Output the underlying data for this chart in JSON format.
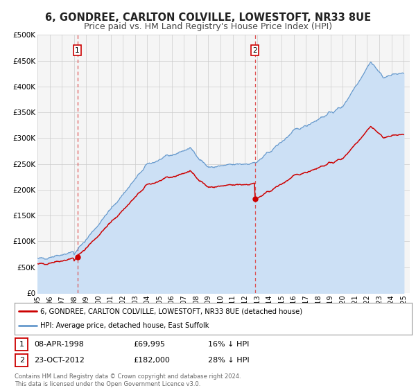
{
  "title": "6, GONDREE, CARLTON COLVILLE, LOWESTOFT, NR33 8UE",
  "subtitle": "Price paid vs. HM Land Registry's House Price Index (HPI)",
  "ylim": [
    0,
    500000
  ],
  "yticks": [
    0,
    50000,
    100000,
    150000,
    200000,
    250000,
    300000,
    350000,
    400000,
    450000,
    500000
  ],
  "xlim_start": 1995.0,
  "xlim_end": 2025.5,
  "xtick_years": [
    1995,
    1996,
    1997,
    1998,
    1999,
    2000,
    2001,
    2002,
    2003,
    2004,
    2005,
    2006,
    2007,
    2008,
    2009,
    2010,
    2011,
    2012,
    2013,
    2014,
    2015,
    2016,
    2017,
    2018,
    2019,
    2020,
    2021,
    2022,
    2023,
    2024,
    2025
  ],
  "sale1_x": 1998.27,
  "sale1_y": 69995,
  "sale1_label": "1",
  "sale2_x": 2012.81,
  "sale2_y": 182000,
  "sale2_label": "2",
  "red_line_color": "#cc0000",
  "blue_line_color": "#6699cc",
  "blue_fill_color": "#cce0f5",
  "red_dot_color": "#cc0000",
  "vline_color": "#dd4444",
  "bg_color": "#ffffff",
  "plot_bg_color": "#f5f5f5",
  "grid_color": "#cccccc",
  "legend_label_red": "6, GONDREE, CARLTON COLVILLE, LOWESTOFT, NR33 8UE (detached house)",
  "legend_label_blue": "HPI: Average price, detached house, East Suffolk",
  "table_row1": [
    "1",
    "08-APR-1998",
    "£69,995",
    "16% ↓ HPI"
  ],
  "table_row2": [
    "2",
    "23-OCT-2012",
    "£182,000",
    "28% ↓ HPI"
  ],
  "footnote": "Contains HM Land Registry data © Crown copyright and database right 2024.\nThis data is licensed under the Open Government Licence v3.0.",
  "title_fontsize": 10.5,
  "subtitle_fontsize": 9
}
